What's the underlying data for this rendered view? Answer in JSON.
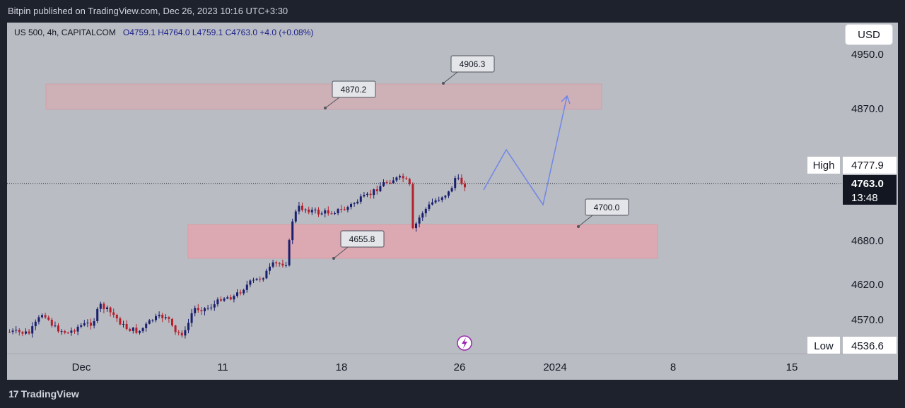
{
  "header": {
    "published_text": "Bitpin published on TradingView.com, Dec 26, 2023 10:16 UTC+3:30"
  },
  "legend": {
    "symbol_text": "US 500, 4h, CAPITALCOM",
    "ohlc_text": "O4759.1  H4764.0  L4759.1  C4763.0  +4.0 (+0.08%)"
  },
  "currency_button": "USD",
  "price_axis": {
    "ticks": [
      "4950.0",
      "4870.0",
      "4680.0",
      "4620.0",
      "4570.0"
    ],
    "high_label": "High",
    "high_value": "4777.9",
    "current_price": "4763.0",
    "countdown": "13:48",
    "low_label": "Low",
    "low_value": "4536.6"
  },
  "time_axis": {
    "ticks": [
      "Dec",
      "11",
      "18",
      "26",
      "2024",
      "8",
      "15"
    ]
  },
  "annotations": {
    "callouts": [
      "4870.2",
      "4906.3",
      "4655.8",
      "4700.0"
    ]
  },
  "footer": {
    "brand": "TradingView",
    "brand_mark": "17"
  },
  "colors": {
    "up_candle": "#1a1f6e",
    "down_candle": "#b3202c",
    "zone_fill": "#e8a2ab",
    "projection_line": "#6f86e8",
    "chart_bg": "#b9bcc2",
    "frame_bg": "#1e222d"
  },
  "icons": {
    "lightning": "lightning-icon"
  }
}
